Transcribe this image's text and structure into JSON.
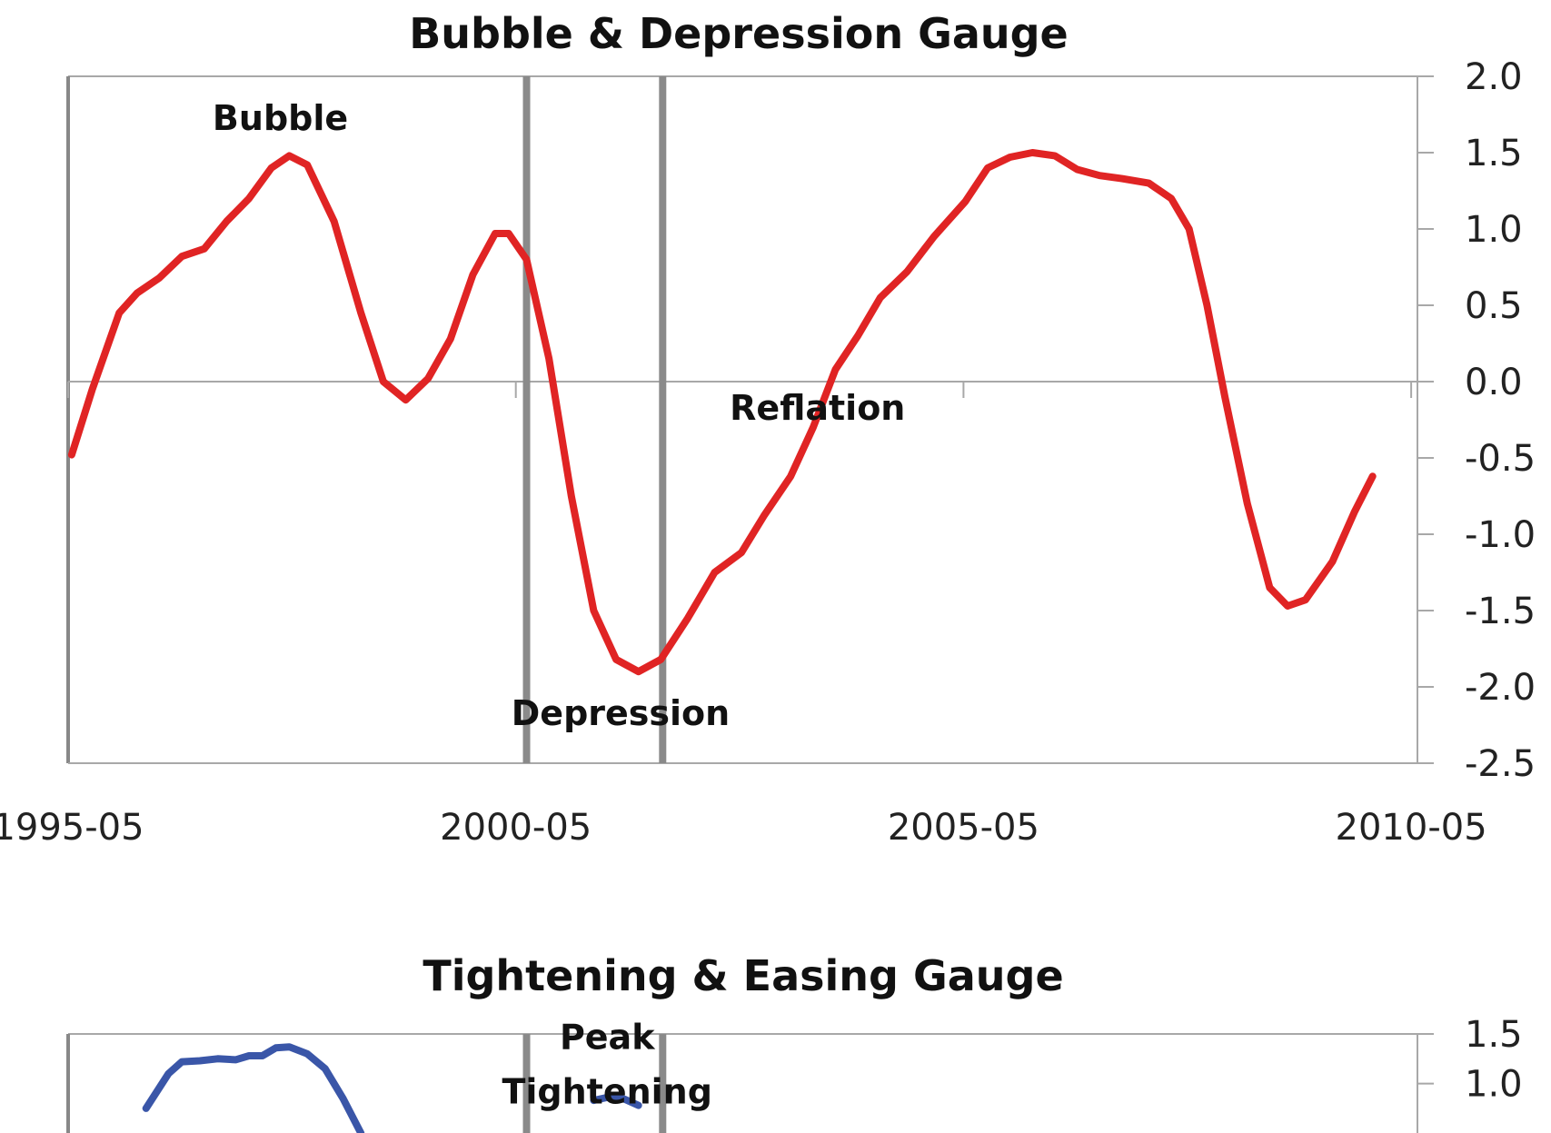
{
  "chart_data": [
    {
      "type": "line",
      "title": "Bubble & Depression Gauge",
      "y_axis": {
        "position": "right",
        "ylim": [
          -2.5,
          2.0
        ],
        "ticks": [
          "2.0",
          "1.5",
          "1.0",
          "0.5",
          "0.0",
          "-0.5",
          "-1.0",
          "-1.5",
          "-2.0",
          "-2.5"
        ]
      },
      "x_axis": {
        "range": [
          1995.33,
          2010.4
        ],
        "ticks": [
          {
            "value": 1995.33,
            "label": "1995-05"
          },
          {
            "value": 2000.33,
            "label": "2000-05"
          },
          {
            "value": 2005.33,
            "label": "2005-05"
          },
          {
            "value": 2010.33,
            "label": "2010-05"
          }
        ]
      },
      "markers": [
        {
          "name": "marker-2000",
          "x": 2000.45
        },
        {
          "name": "marker-2001",
          "x": 2001.97
        }
      ],
      "annotations": [
        {
          "text": "Bubble",
          "x": 1997.7,
          "y": 1.65
        },
        {
          "text": "Reflation",
          "x": 2003.7,
          "y": -0.25
        },
        {
          "text": "Depression",
          "x": 2001.5,
          "y": -2.25
        }
      ],
      "series": [
        {
          "name": "Bubble & Depression Gauge",
          "color": "#e02424",
          "points": [
            [
              1995.37,
              -0.48
            ],
            [
              1995.6,
              -0.05
            ],
            [
              1995.9,
              0.45
            ],
            [
              1996.1,
              0.58
            ],
            [
              1996.35,
              0.68
            ],
            [
              1996.6,
              0.82
            ],
            [
              1996.85,
              0.87
            ],
            [
              1997.1,
              1.05
            ],
            [
              1997.35,
              1.2
            ],
            [
              1997.6,
              1.4
            ],
            [
              1997.8,
              1.48
            ],
            [
              1998.0,
              1.42
            ],
            [
              1998.3,
              1.05
            ],
            [
              1998.6,
              0.45
            ],
            [
              1998.85,
              0.0
            ],
            [
              1999.1,
              -0.12
            ],
            [
              1999.35,
              0.02
            ],
            [
              1999.6,
              0.28
            ],
            [
              1999.85,
              0.7
            ],
            [
              2000.1,
              0.97
            ],
            [
              2000.25,
              0.97
            ],
            [
              2000.45,
              0.8
            ],
            [
              2000.7,
              0.15
            ],
            [
              2000.95,
              -0.75
            ],
            [
              2001.2,
              -1.5
            ],
            [
              2001.45,
              -1.82
            ],
            [
              2001.7,
              -1.9
            ],
            [
              2001.95,
              -1.82
            ],
            [
              2002.25,
              -1.55
            ],
            [
              2002.55,
              -1.25
            ],
            [
              2002.85,
              -1.12
            ],
            [
              2003.1,
              -0.88
            ],
            [
              2003.4,
              -0.62
            ],
            [
              2003.65,
              -0.3
            ],
            [
              2003.9,
              0.08
            ],
            [
              2004.15,
              0.3
            ],
            [
              2004.4,
              0.55
            ],
            [
              2004.7,
              0.72
            ],
            [
              2005.0,
              0.95
            ],
            [
              2005.35,
              1.18
            ],
            [
              2005.6,
              1.4
            ],
            [
              2005.85,
              1.47
            ],
            [
              2006.1,
              1.5
            ],
            [
              2006.35,
              1.48
            ],
            [
              2006.6,
              1.39
            ],
            [
              2006.85,
              1.35
            ],
            [
              2007.1,
              1.33
            ],
            [
              2007.4,
              1.3
            ],
            [
              2007.65,
              1.2
            ],
            [
              2007.85,
              1.0
            ],
            [
              2008.05,
              0.5
            ],
            [
              2008.25,
              -0.1
            ],
            [
              2008.5,
              -0.8
            ],
            [
              2008.75,
              -1.35
            ],
            [
              2008.95,
              -1.47
            ],
            [
              2009.15,
              -1.43
            ],
            [
              2009.45,
              -1.18
            ],
            [
              2009.7,
              -0.85
            ],
            [
              2009.9,
              -0.62
            ]
          ]
        }
      ]
    },
    {
      "type": "line",
      "title": "Tightening & Easing Gauge",
      "y_axis": {
        "position": "right",
        "ylim": [
          -2.0,
          1.5
        ],
        "ticks": [
          "1.5",
          "1.0"
        ]
      },
      "x_axis": {
        "range": [
          1995.33,
          2010.4
        ]
      },
      "markers": [
        {
          "name": "marker-2000",
          "x": 2000.45
        },
        {
          "name": "marker-2001",
          "x": 2001.97
        }
      ],
      "annotations": [
        {
          "text": "Peak",
          "x": 2001.35,
          "y": 1.35
        },
        {
          "text": "Tightening",
          "x": 2001.35,
          "y": 0.8
        }
      ],
      "series": [
        {
          "name": "Tightening & Easing Gauge",
          "color": "#3a56a8",
          "points": [
            [
              1996.2,
              0.75
            ],
            [
              1996.45,
              1.1
            ],
            [
              1996.6,
              1.22
            ],
            [
              1996.8,
              1.23
            ],
            [
              1997.0,
              1.25
            ],
            [
              1997.2,
              1.24
            ],
            [
              1997.35,
              1.28
            ],
            [
              1997.5,
              1.28
            ],
            [
              1997.65,
              1.36
            ],
            [
              1997.8,
              1.37
            ],
            [
              1998.0,
              1.3
            ],
            [
              1998.2,
              1.15
            ],
            [
              1998.4,
              0.85
            ],
            [
              1998.6,
              0.5
            ]
          ]
        },
        {
          "name": "Tightening & Easing Gauge (right)",
          "color": "#3a56a8",
          "points": [
            [
              2001.2,
              0.83
            ],
            [
              2001.35,
              0.86
            ],
            [
              2001.45,
              0.86
            ],
            [
              2001.55,
              0.84
            ],
            [
              2001.7,
              0.78
            ]
          ]
        }
      ]
    }
  ]
}
